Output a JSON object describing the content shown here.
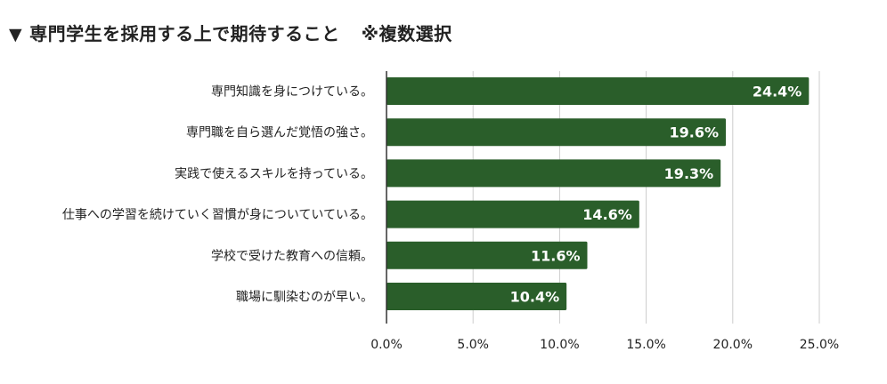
{
  "header": {
    "marker": "▼",
    "title": "専門学生を採用する上で期待すること",
    "note": "※複数選択"
  },
  "colors": {
    "bar": "#2a5e2a",
    "grid": "#cccccc",
    "axis": "#333333",
    "text": "#222222",
    "label_text": "#ffffff"
  },
  "chart_data": {
    "type": "bar",
    "orientation": "horizontal",
    "categories": [
      "専門知識を身につけている。",
      "専門職を自ら選んだ覚悟の強さ。",
      "実践で使えるスキルを持っている。",
      "仕事への学習を続けていく習慣が身についていている。",
      "学校で受けた教育への信頼。",
      "職場に馴染むのが早い。"
    ],
    "values": [
      24.4,
      19.6,
      19.3,
      14.6,
      11.6,
      10.4
    ],
    "value_labels": [
      "24.4%",
      "19.6%",
      "19.3%",
      "14.6%",
      "11.6%",
      "10.4%"
    ],
    "xlim": [
      0,
      25
    ],
    "xticks": [
      0,
      5,
      10,
      15,
      20,
      25
    ],
    "xtick_labels": [
      "0.0%",
      "5.0%",
      "10.0%",
      "15.0%",
      "20.0%",
      "25.0%"
    ],
    "grid": true,
    "legend": "none"
  }
}
